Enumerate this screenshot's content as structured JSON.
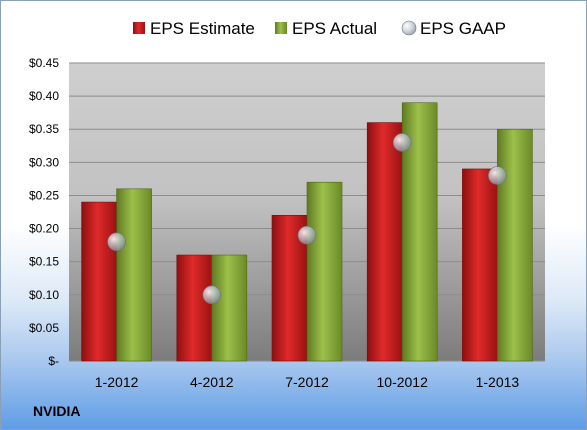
{
  "chart_data": {
    "type": "bar",
    "categories": [
      "1-2012",
      "4-2012",
      "7-2012",
      "10-2012",
      "1-2013"
    ],
    "series": [
      {
        "name": "EPS Estimate",
        "values": [
          0.24,
          0.16,
          0.22,
          0.36,
          0.29
        ],
        "color": "#c81e1e",
        "kind": "bar"
      },
      {
        "name": "EPS Actual",
        "values": [
          0.26,
          0.16,
          0.27,
          0.39,
          0.35
        ],
        "color": "#86a83a",
        "kind": "bar"
      },
      {
        "name": "EPS GAAP",
        "values": [
          0.18,
          0.1,
          0.19,
          0.33,
          0.28
        ],
        "color": "#b9c2ce",
        "kind": "marker"
      }
    ],
    "ylim": [
      0,
      0.45
    ],
    "y_ticks": [
      {
        "value": 0.45,
        "label": "$0.45"
      },
      {
        "value": 0.4,
        "label": "$0.40"
      },
      {
        "value": 0.35,
        "label": "$0.35"
      },
      {
        "value": 0.3,
        "label": "$0.30"
      },
      {
        "value": 0.25,
        "label": "$0.25"
      },
      {
        "value": 0.2,
        "label": "$0.20"
      },
      {
        "value": 0.15,
        "label": "$0.15"
      },
      {
        "value": 0.1,
        "label": "$0.10"
      },
      {
        "value": 0.05,
        "label": "$0.05"
      },
      {
        "value": 0,
        "label": "$-"
      }
    ],
    "grid": true,
    "legend_position": "top"
  },
  "company": "NVIDIA"
}
